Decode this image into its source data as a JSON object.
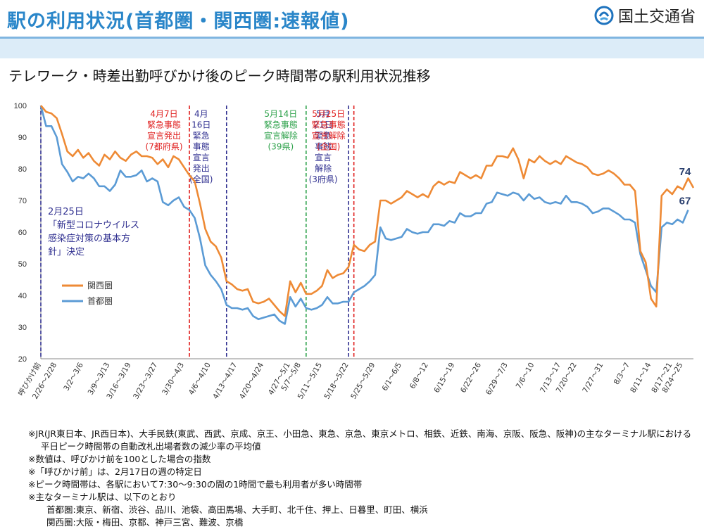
{
  "header": {
    "title": "駅の利用状況(首都圏・関西圏:速報値)",
    "logo_text": "国土交通省",
    "subtitle": "テレワーク・時差出勤呼びかけ後のピーク時間帯の駅利用状況推移"
  },
  "colors": {
    "kansai": "#ee8a35",
    "shutoken": "#5b9bd5",
    "red": "#e0201f",
    "navy": "#303090",
    "green": "#2ea24b",
    "title_blue": "#2a86c9"
  },
  "chart_data": {
    "type": "line",
    "ylim": [
      20,
      100
    ],
    "yticks": [
      20,
      30,
      40,
      50,
      60,
      70,
      80,
      90,
      100
    ],
    "grid": false,
    "legend_position": "left-middle",
    "x_tick_labels": [
      "呼びかけ前",
      "2/26〜2/28",
      "3/2〜3/6",
      "3/9〜3/13",
      "3/16〜3/19",
      "3/23〜3/27",
      "3/30〜4/3",
      "4/6〜4/10",
      "4/13〜4/17",
      "4/20〜4/24",
      "4/27〜5/1",
      "5/7〜5/8",
      "5/11〜5/15",
      "5/18〜5/22",
      "5/25〜5/29",
      "6/1〜6/5",
      "6/8〜12",
      "6/15〜19",
      "6/22〜26",
      "6/29〜7/3",
      "7/6〜10",
      "7/13〜17",
      "7/20〜22",
      "7/27〜31",
      "8/3〜7",
      "8/11〜14",
      "8/17〜21",
      "8/24〜25"
    ],
    "x_tick_positions": [
      0,
      3,
      8,
      13,
      17,
      22,
      27,
      32,
      37,
      42,
      47,
      49,
      53,
      58,
      63,
      68,
      73,
      78,
      83,
      88,
      93,
      98,
      101,
      106,
      111,
      115,
      119,
      121
    ],
    "series": [
      {
        "name": "関西圏",
        "color": "#ee8a35",
        "end_label": "74",
        "values": [
          100,
          98,
          97.5,
          96,
          91,
          85.5,
          84,
          86,
          83.5,
          85,
          82.5,
          81,
          84.5,
          83,
          85.5,
          83.5,
          82.5,
          84.5,
          85.5,
          84,
          84,
          83.5,
          81.5,
          83,
          80.5,
          84,
          83,
          80.5,
          78,
          76,
          69,
          61,
          57,
          55.5,
          52,
          44.5,
          43.5,
          42,
          41.5,
          42,
          38,
          37.5,
          38,
          39,
          37,
          35,
          33.5,
          44.5,
          41,
          44,
          40.5,
          40.5,
          41.5,
          43,
          48,
          45.5,
          46.5,
          47,
          49,
          56,
          54.5,
          54,
          56,
          57,
          70,
          70,
          69,
          70,
          71,
          73,
          72,
          71,
          72,
          71,
          74.5,
          76,
          75,
          76,
          75.5,
          79,
          78,
          77,
          78,
          77,
          81,
          81,
          84,
          84,
          83.5,
          86.5,
          83,
          77,
          83,
          82,
          84,
          82.5,
          81.5,
          82.5,
          81.5,
          84,
          83,
          82,
          81.5,
          80.5,
          78.5,
          78,
          78.5,
          79.5,
          78.5,
          77,
          75,
          75,
          73,
          54,
          50.5,
          39,
          36.5,
          71.5,
          73.5,
          72,
          74.5,
          73.5,
          77,
          74
        ]
      },
      {
        "name": "首都圏",
        "color": "#5b9bd5",
        "end_label": "67",
        "values": [
          100,
          93.5,
          93.5,
          90,
          81.5,
          79,
          76,
          77.5,
          77,
          78.5,
          77,
          74.5,
          74.5,
          73,
          75,
          79.5,
          77.5,
          77.5,
          78,
          79.5,
          76,
          77,
          76,
          69.5,
          68.5,
          70,
          71,
          68,
          67,
          64.5,
          58,
          49.5,
          46.5,
          44.5,
          42,
          37,
          36,
          36,
          35.5,
          36,
          33.5,
          32.5,
          33,
          33.5,
          34,
          32,
          31,
          39.5,
          36.5,
          39,
          36,
          35.5,
          36,
          37,
          39.5,
          37.5,
          37.5,
          38,
          38,
          41,
          42,
          43,
          44.5,
          46.5,
          61.5,
          58,
          57.5,
          58,
          58.5,
          61,
          60,
          59.5,
          60,
          60,
          62.5,
          62.5,
          62,
          63.5,
          63,
          66,
          65,
          65,
          66,
          66,
          69,
          69.5,
          72.5,
          72,
          71.5,
          72.5,
          72,
          70,
          72,
          70.5,
          71,
          69.5,
          69,
          69.5,
          69,
          71.5,
          69.5,
          69.5,
          69,
          68,
          66,
          66.5,
          67.5,
          67.5,
          66.5,
          65.5,
          64,
          64,
          63,
          53,
          48,
          43,
          41,
          61.5,
          63,
          62.5,
          64,
          63,
          67
        ]
      }
    ],
    "events": [
      {
        "x": 0,
        "color": "#303090",
        "label": []
      },
      {
        "x": 28,
        "color": "#e0201f",
        "label": [
          "4月7日",
          "緊急事態",
          "宣言発出",
          "(7都府県)"
        ]
      },
      {
        "x": 35,
        "color": "#303090",
        "label": [
          "4月",
          "16日",
          "緊急",
          "事態",
          "宣言",
          "発出",
          "(全国)"
        ]
      },
      {
        "x": 50,
        "color": "#2ea24b",
        "label": [
          "5月14日",
          "緊急事態",
          "宣言解除",
          "(39県)"
        ]
      },
      {
        "x": 58,
        "color": "#303090",
        "label": [
          "5月",
          "21日",
          "緊急",
          "事態",
          "宣言",
          "解除",
          "(3府県)"
        ]
      },
      {
        "x": 59,
        "color": "#e0201f",
        "label": [
          "5月25日",
          "緊急事態",
          "宣言解除",
          "(全国)"
        ]
      }
    ],
    "annotation": [
      "2月25日",
      "「新型コロナウイルス",
      "感染症対策の基本方",
      "針」決定"
    ]
  },
  "notes": {
    "line1": "※JR(JR東日本、JR西日本)、大手民鉄(東武、西武、京成、京王、小田急、東急、京急、東京メトロ、相鉄、近鉄、南海、京阪、阪急、阪神)の主なターミナル駅における",
    "line2": "平日ピーク時間帯の自動改札出場者数の減少率の平均値",
    "line3": "※数値は、呼びかけ前を100とした場合の指数",
    "line4": "※「呼びかけ前」は、2月17日の週の特定日",
    "line5": "※ピーク時間帯は、各駅において7:30〜9:30の間の1時間で最も利用者が多い時間帯",
    "line6": "※主なターミナル駅は、以下のとおり",
    "line7": "首都圏:東京、新宿、渋谷、品川、池袋、高田馬場、大手町、北千住、押上、日暮里、町田、横浜",
    "line8": "関西圏:大阪・梅田、京都、神戸三宮、難波、京橋"
  }
}
